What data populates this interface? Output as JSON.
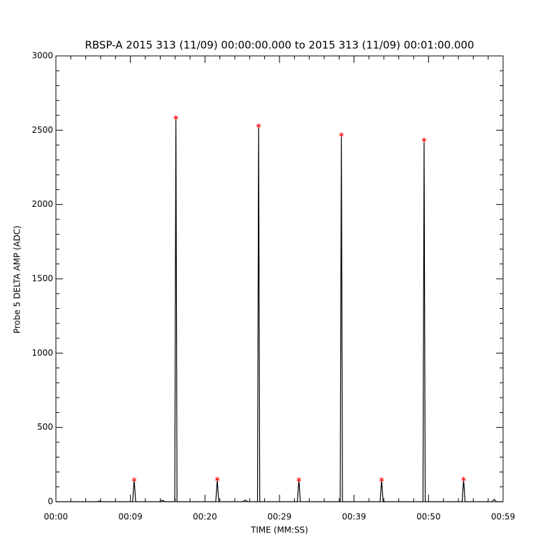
{
  "chart_data": {
    "type": "line",
    "title": "RBSP-A 2015 313 (11/09) 00:00:00.000 to 2015 313 (11/09) 00:01:00.000",
    "x_label": "TIME (MM:SS)",
    "y_label": "Probe 5 DELTA AMP (ADC)",
    "xlim": [
      0,
      60
    ],
    "ylim": [
      0,
      3000
    ],
    "xticks": [
      {
        "value": 0,
        "label": "00:00"
      },
      {
        "value": 10,
        "label": "00:09"
      },
      {
        "value": 20,
        "label": "00:20"
      },
      {
        "value": 30,
        "label": "00:29"
      },
      {
        "value": 40,
        "label": "00:39"
      },
      {
        "value": 50,
        "label": "00:50"
      },
      {
        "value": 60,
        "label": "00:59"
      }
    ],
    "yticks": [
      0,
      500,
      1000,
      1500,
      2000,
      2500,
      3000
    ],
    "xminor_ticks": [
      2,
      4,
      6,
      8,
      12,
      14,
      16,
      18,
      22,
      24,
      26,
      28,
      32,
      34,
      36,
      38,
      42,
      44,
      46,
      48,
      52,
      54,
      56,
      58
    ],
    "yminor_ticks": [
      100,
      200,
      300,
      400,
      600,
      700,
      800,
      900,
      1100,
      1200,
      1300,
      1400,
      1600,
      1700,
      1800,
      1900,
      2100,
      2200,
      2300,
      2400,
      2600,
      2700,
      2800,
      2900
    ],
    "series": [
      {
        "color": "#000000",
        "marker": "none",
        "x": [
          0,
          5.6,
          5.8,
          6.0,
          10.3,
          10.5,
          10.7,
          14.0,
          14.3,
          14.6,
          15.95,
          16.1,
          16.25,
          21.45,
          21.65,
          21.85,
          25.0,
          25.4,
          25.8,
          27.05,
          27.2,
          27.35,
          32.4,
          32.6,
          32.8,
          38.15,
          38.3,
          38.45,
          43.5,
          43.7,
          43.9,
          49.25,
          49.4,
          49.55,
          54.5,
          54.7,
          54.9,
          58.5,
          58.8,
          59.1,
          60
        ],
        "values": [
          0,
          0,
          5,
          0,
          0,
          150,
          0,
          0,
          10,
          0,
          0,
          2585,
          0,
          0,
          150,
          0,
          0,
          10,
          0,
          0,
          2530,
          0,
          0,
          150,
          0,
          0,
          2470,
          0,
          0,
          150,
          0,
          0,
          2435,
          0,
          0,
          150,
          0,
          0,
          15,
          0,
          0
        ]
      },
      {
        "color": "#ff0000",
        "marker": "asterisk",
        "x": [
          10.5,
          16.1,
          21.65,
          27.2,
          32.6,
          38.3,
          43.7,
          49.4,
          54.7
        ],
        "values": [
          148,
          2585,
          152,
          2530,
          148,
          2470,
          148,
          2435,
          152
        ]
      }
    ]
  }
}
